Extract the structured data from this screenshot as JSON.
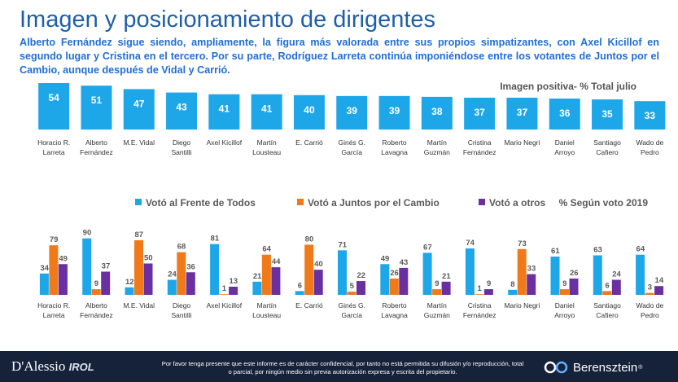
{
  "header": {
    "title": "Imagen y posicionamiento de dirigentes",
    "subtitle": "Alberto Fernández sigue siendo, ampliamente, la figura más valorada entre sus propios simpatizantes, con Axel Kicillof en segundo lugar y Cristina en el tercero. Por su parte, Rodríguez Larreta continúa imponiéndose entre los votantes de Juntos por el Cambio, aunque después de Vidal y Carrió."
  },
  "chart_data": [
    {
      "type": "bar",
      "title": "Imagen positiva- % Total julio",
      "categories": [
        "Horacio R.|Larreta",
        "Alberto|Fernández",
        "M.E. Vidal",
        "Diego|Santilli",
        "Axel Kicillof",
        "Martín|Lousteau",
        "E. Carrió",
        "Ginés G.|García",
        "Roberto|Lavagna",
        "Martín|Guzmán",
        "Cristina|Fernández",
        "Mario Negri",
        "Daniel|Arroyo",
        "Santiago|Cafiero",
        "Wado de|Pedro"
      ],
      "series": [
        {
          "name": "Imagen positiva",
          "values": [
            54,
            51,
            47,
            43,
            41,
            41,
            40,
            39,
            39,
            38,
            37,
            37,
            36,
            35,
            33
          ]
        }
      ],
      "ylim": [
        0,
        60
      ]
    },
    {
      "type": "bar",
      "title": "% Según voto 2019",
      "categories": [
        "Horacio R.|Larreta",
        "Alberto|Fernández",
        "M.E. Vidal",
        "Diego|Santilli",
        "Axel Kicillof",
        "Martín|Lousteau",
        "E. Carrió",
        "Ginés G.|García",
        "Roberto|Lavagna",
        "Martín|Guzmán",
        "Cristina|Fernández",
        "Mario Negri",
        "Daniel|Arroyo",
        "Santiago|Cafiero",
        "Wado de|Pedro"
      ],
      "series": [
        {
          "name": "Votó al Frente de Todos",
          "values": [
            34,
            90,
            12,
            24,
            81,
            21,
            6,
            71,
            49,
            67,
            74,
            8,
            61,
            63,
            64
          ]
        },
        {
          "name": "Votó a Juntos por el Cambio",
          "values": [
            79,
            9,
            87,
            68,
            1,
            64,
            80,
            5,
            26,
            9,
            1,
            73,
            9,
            6,
            3
          ]
        },
        {
          "name": "Votó a otros",
          "values": [
            49,
            37,
            50,
            36,
            13,
            44,
            40,
            22,
            43,
            21,
            9,
            33,
            26,
            24,
            14
          ]
        }
      ],
      "legend": "top",
      "ylim": [
        0,
        100
      ]
    }
  ],
  "colors": {
    "total": "#1ea7e8",
    "fdt": "#1ea7e8",
    "jxc": "#f07a1a",
    "otros": "#6a2fa0",
    "title": "#1f5fa8",
    "subtitle": "#1f6fd6",
    "footer": "#16213a"
  },
  "footer": {
    "note": "Por favor tenga presente que este informe es de carácter confidencial, por tanto no está permitida su difusión y/o reproducción, total o parcial, por ningún medio sin previa autorización expresa y escrita del propietario.",
    "logo_left_main": "D'Alessio",
    "logo_left_sub": "IROL",
    "logo_right": "Berensztein",
    "logo_right_mark": "®"
  }
}
